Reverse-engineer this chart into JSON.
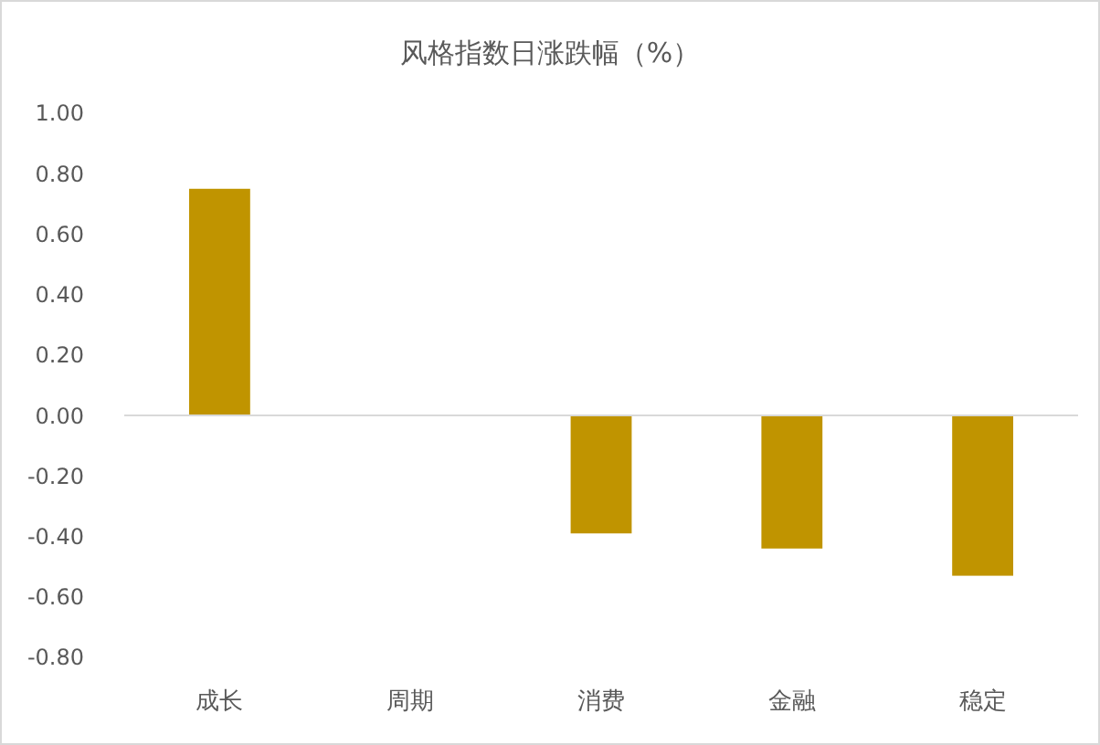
{
  "chart_data": {
    "type": "bar",
    "title": "风格指数日涨跌幅（%）",
    "categories": [
      "成长",
      "周期",
      "消费",
      "金融",
      "稳定"
    ],
    "values": [
      0.75,
      0,
      -0.39,
      -0.44,
      -0.53
    ],
    "color": "#c09400",
    "ylim": [
      -0.8,
      1
    ],
    "yticks": [
      {
        "value": -0.8,
        "label": "-0.80"
      },
      {
        "value": -0.6,
        "label": "-0.60"
      },
      {
        "value": -0.4,
        "label": "-0.40"
      },
      {
        "value": -0.2,
        "label": "-0.20"
      },
      {
        "value": 0,
        "label": "0.00"
      },
      {
        "value": 0.2,
        "label": "0.20"
      },
      {
        "value": 0.4,
        "label": "0.40"
      },
      {
        "value": 0.6,
        "label": "0.60"
      },
      {
        "value": 0.8,
        "label": "0.80"
      },
      {
        "value": 1,
        "label": "1.00"
      }
    ]
  }
}
